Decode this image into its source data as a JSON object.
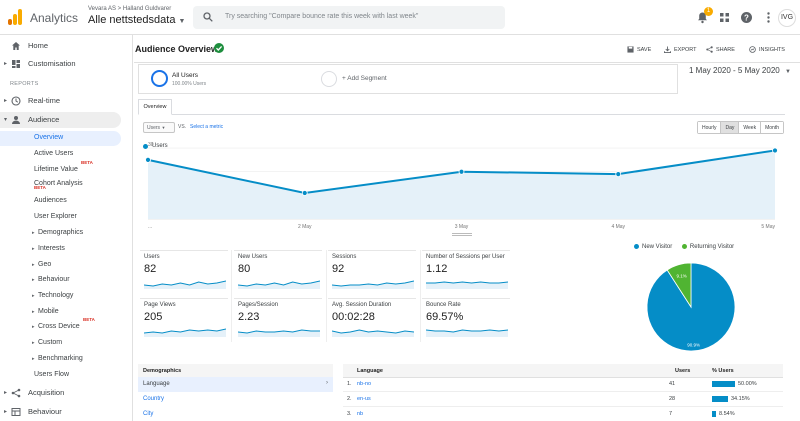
{
  "app": {
    "name": "Analytics"
  },
  "account": {
    "crumb": "Vevara AS > Halland Guldvarer",
    "property": "Alle nettstedsdata"
  },
  "search": {
    "placeholder": "Try searching \"Compare bounce rate this week with last week\""
  },
  "topbar": {
    "notification_count": "1",
    "avatar_text": "IVG"
  },
  "sidebar": {
    "home": "Home",
    "customisation": "Customisation",
    "reports_heading": "REPORTS",
    "realtime": "Real-time",
    "audience": "Audience",
    "audience_items": [
      "Overview",
      "Active Users",
      "Lifetime Value",
      "Cohort Analysis",
      "Audiences",
      "User Explorer",
      "Demographics",
      "Interests",
      "Geo",
      "Behaviour",
      "Technology",
      "Mobile",
      "Cross Device",
      "Custom",
      "Benchmarking",
      "Users Flow"
    ],
    "beta": "BETA",
    "acquisition": "Acquisition",
    "behaviour": "Behaviour"
  },
  "header": {
    "title": "Audience Overview",
    "save": "SAVE",
    "export": "EXPORT",
    "share": "SHARE",
    "insights": "INSIGHTS"
  },
  "segments": {
    "active_name": "All Users",
    "active_pct": "100.00% Users",
    "add": "+ Add Segment"
  },
  "date_range": "1 May 2020 - 5 May 2020",
  "chart_controls": {
    "tab": "Overview",
    "metric": "Users",
    "vs": "VS.",
    "select_metric": "Select a metric",
    "granularity": [
      "Hourly",
      "Day",
      "Week",
      "Month"
    ],
    "granularity_selected": "Day"
  },
  "chart_data": {
    "type": "line",
    "title": "",
    "series": [
      {
        "name": "Users",
        "values": [
          25,
          11,
          20,
          19,
          29
        ]
      }
    ],
    "categories": [
      "1 May",
      "2 May",
      "3 May",
      "4 May",
      "5 May"
    ],
    "x_tick_labels": [
      "...",
      "2 May",
      "3 May",
      "4 May",
      "5 May"
    ],
    "y_ticks": [
      10,
      20,
      30
    ],
    "ylim": [
      0,
      33
    ],
    "grid": true,
    "legend": "top-left",
    "color": "#058dc7"
  },
  "metrics": [
    {
      "label": "Users",
      "value": "82"
    },
    {
      "label": "New Users",
      "value": "80"
    },
    {
      "label": "Sessions",
      "value": "92"
    },
    {
      "label": "Number of Sessions per User",
      "value": "1.12"
    },
    {
      "label": "Page Views",
      "value": "205"
    },
    {
      "label": "Pages/Session",
      "value": "2.23"
    },
    {
      "label": "Avg. Session Duration",
      "value": "00:02:28"
    },
    {
      "label": "Bounce Rate",
      "value": "69.57%"
    }
  ],
  "pie": {
    "legend": [
      {
        "name": "New Visitor",
        "color": "#058dc7"
      },
      {
        "name": "Returning Visitor",
        "color": "#50b432"
      }
    ],
    "values": [
      90.9,
      9.1
    ],
    "labels": [
      "90.9%",
      "9.1%"
    ]
  },
  "demographics": {
    "header": "Demographics",
    "items": [
      "Language",
      "Country",
      "City"
    ]
  },
  "language_table": {
    "headers": {
      "language": "Language",
      "users": "Users",
      "pct": "% Users"
    },
    "rows": [
      {
        "rank": "1.",
        "lang": "nb-no",
        "users": "41",
        "pct": "50.00%",
        "share": 0.5
      },
      {
        "rank": "2.",
        "lang": "en-us",
        "users": "28",
        "pct": "34.15%",
        "share": 0.3415
      },
      {
        "rank": "3.",
        "lang": "nb",
        "users": "7",
        "pct": "8.54%",
        "share": 0.0854
      }
    ]
  }
}
